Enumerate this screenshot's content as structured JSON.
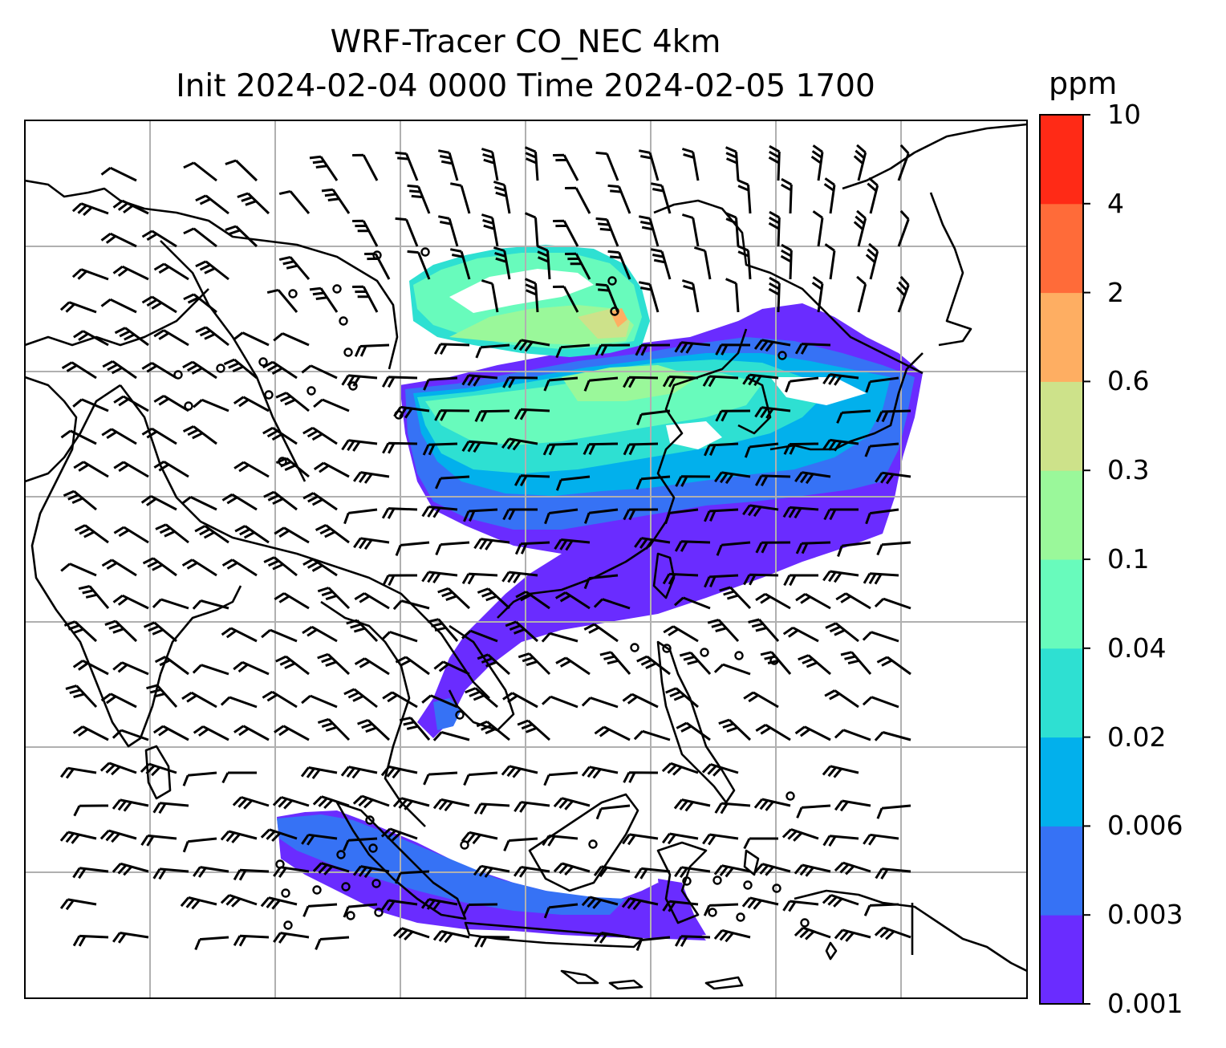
{
  "title": {
    "line1": "WRF-Tracer CO_NEC 4km",
    "line2": "Init 2024-02-04 0000 Time 2024-02-05 1700"
  },
  "colorbar": {
    "unit": "ppm",
    "levels": [
      {
        "label": "0.001",
        "color": "#6a2cff"
      },
      {
        "label": "0.003",
        "color": "#3672f5"
      },
      {
        "label": "0.006",
        "color": "#02b0ec"
      },
      {
        "label": "0.02",
        "color": "#2ee0d2"
      },
      {
        "label": "0.04",
        "color": "#68fbbc"
      },
      {
        "label": "0.1",
        "color": "#9af89a"
      },
      {
        "label": "0.3",
        "color": "#cde28a"
      },
      {
        "label": "0.6",
        "color": "#feae62"
      },
      {
        "label": "2",
        "color": "#ff6b39"
      },
      {
        "label": "4",
        "color": "#ff2a16"
      },
      {
        "label": "10",
        "color": null
      }
    ]
  },
  "map": {
    "gridlines": "on",
    "grid_color": "#b0b0b0",
    "coastline_color": "#000000",
    "wind_symbol": "wind-barb-icon",
    "calm_symbol": "calm-circle-icon"
  }
}
